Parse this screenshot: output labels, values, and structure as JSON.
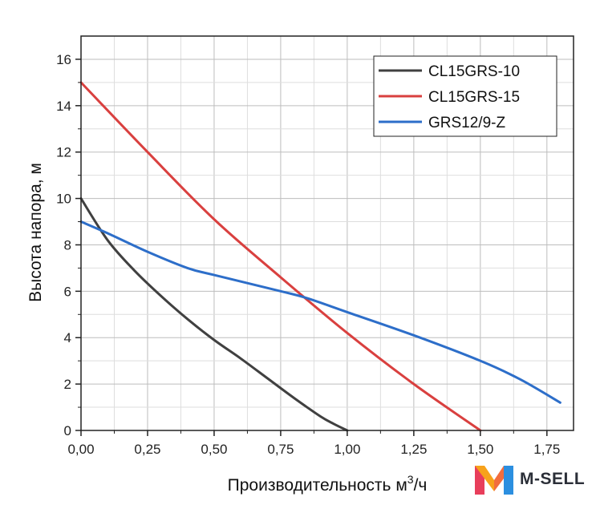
{
  "chart_data": {
    "type": "line",
    "xlabel": "Производительность м",
    "xlabel_sup": "3",
    "xlabel_suffix": "/ч",
    "ylabel": "Высота напора, м",
    "xlim": [
      0,
      1.85
    ],
    "ylim": [
      0,
      17
    ],
    "xticks": [
      "0,00",
      "0,25",
      "0,50",
      "0,75",
      "1,00",
      "1,25",
      "1,50",
      "1,75"
    ],
    "xtick_values": [
      0,
      0.25,
      0.5,
      0.75,
      1.0,
      1.25,
      1.5,
      1.75
    ],
    "yticks": [
      "0",
      "2",
      "4",
      "6",
      "8",
      "10",
      "12",
      "14",
      "16"
    ],
    "ytick_values": [
      0,
      2,
      4,
      6,
      8,
      10,
      12,
      14,
      16
    ],
    "grid": true,
    "legend_position": "top-right",
    "series": [
      {
        "name": "CL15GRS-10",
        "color": "#404040",
        "x": [
          0,
          0.1,
          0.2,
          0.3,
          0.4,
          0.5,
          0.6,
          0.7,
          0.8,
          0.9,
          0.95,
          1.0
        ],
        "y": [
          10.0,
          8.2,
          6.9,
          5.8,
          4.8,
          3.9,
          3.1,
          2.25,
          1.4,
          0.6,
          0.28,
          0.0
        ]
      },
      {
        "name": "CL15GRS-15",
        "color": "#d9403f",
        "x": [
          0,
          0.25,
          0.5,
          0.75,
          1.0,
          1.25,
          1.5
        ],
        "y": [
          15.0,
          12.0,
          9.1,
          6.6,
          4.2,
          2.0,
          0.0
        ]
      },
      {
        "name": "GRS12/9-Z",
        "color": "#2d6ec9",
        "x": [
          0,
          0.1,
          0.25,
          0.4,
          0.5,
          0.75,
          0.85,
          1.0,
          1.25,
          1.5,
          1.65,
          1.8
        ],
        "y": [
          9.0,
          8.5,
          7.7,
          7.0,
          6.7,
          6.0,
          5.7,
          5.1,
          4.1,
          3.0,
          2.2,
          1.2
        ]
      }
    ]
  },
  "brand": {
    "name": "M-SELL",
    "logo_icon": "m-letter-logo-icon",
    "logo_colors": [
      "#e83e5b",
      "#f7a21b",
      "#2c8fe0"
    ]
  }
}
